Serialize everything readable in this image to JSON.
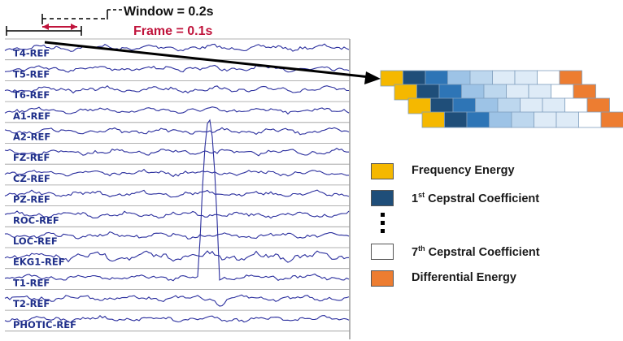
{
  "annotations": {
    "window_label": "Window = 0.2s",
    "frame_label": "Frame = 0.1s"
  },
  "channels": [
    "T4-REF",
    "T5-REF",
    "T6-REF",
    "A1-REF",
    "A2-REF",
    "FZ-REF",
    "CZ-REF",
    "PZ-REF",
    "ROC-REF",
    "LOC-REF",
    "EKG1-REF",
    "T1-REF",
    "T2-REF",
    "PHOTIC-REF"
  ],
  "colors": {
    "frequency_energy": "#f5b800",
    "cepstral_dark": "#1f4e79",
    "cepstral_mid": "#2e75b6",
    "cepstral_light": "#9dc3e6",
    "cepstral_lighter": "#bdd7ee",
    "cepstral_lightest": "#deebf7",
    "cepstral_white": "#ffffff",
    "differential_energy": "#ed7d31",
    "eeg_trace": "#2b2f9e",
    "grid_line": "#999999"
  },
  "feature_rows": [
    [
      "frequency_energy",
      "cepstral_dark",
      "cepstral_mid",
      "cepstral_light",
      "cepstral_lighter",
      "cepstral_lightest",
      "cepstral_lightest",
      "cepstral_white",
      "differential_energy"
    ],
    [
      "frequency_energy",
      "cepstral_dark",
      "cepstral_mid",
      "cepstral_light",
      "cepstral_lighter",
      "cepstral_lightest",
      "cepstral_lightest",
      "cepstral_white",
      "differential_energy"
    ],
    [
      "frequency_energy",
      "cepstral_dark",
      "cepstral_mid",
      "cepstral_light",
      "cepstral_lighter",
      "cepstral_lightest",
      "cepstral_lightest",
      "cepstral_white",
      "differential_energy"
    ],
    [
      "frequency_energy",
      "cepstral_dark",
      "cepstral_mid",
      "cepstral_light",
      "cepstral_lighter",
      "cepstral_lightest",
      "cepstral_lightest",
      "cepstral_white",
      "differential_energy"
    ]
  ],
  "legend": [
    {
      "id": "frequency-energy",
      "color_key": "frequency_energy",
      "label": "Frequency Energy"
    },
    {
      "id": "cepstral-1",
      "color_key": "cepstral_dark",
      "label_num": "1",
      "label_sup": "st",
      "label": " Cepstral Coefficient"
    },
    {
      "id": "cepstral-7",
      "color_key": "cepstral_white",
      "label_num": "7",
      "label_sup": "th",
      "label": " Cepstral Coefficient"
    },
    {
      "id": "differential-energy",
      "color_key": "differential_energy",
      "label": "Differential Energy"
    }
  ]
}
